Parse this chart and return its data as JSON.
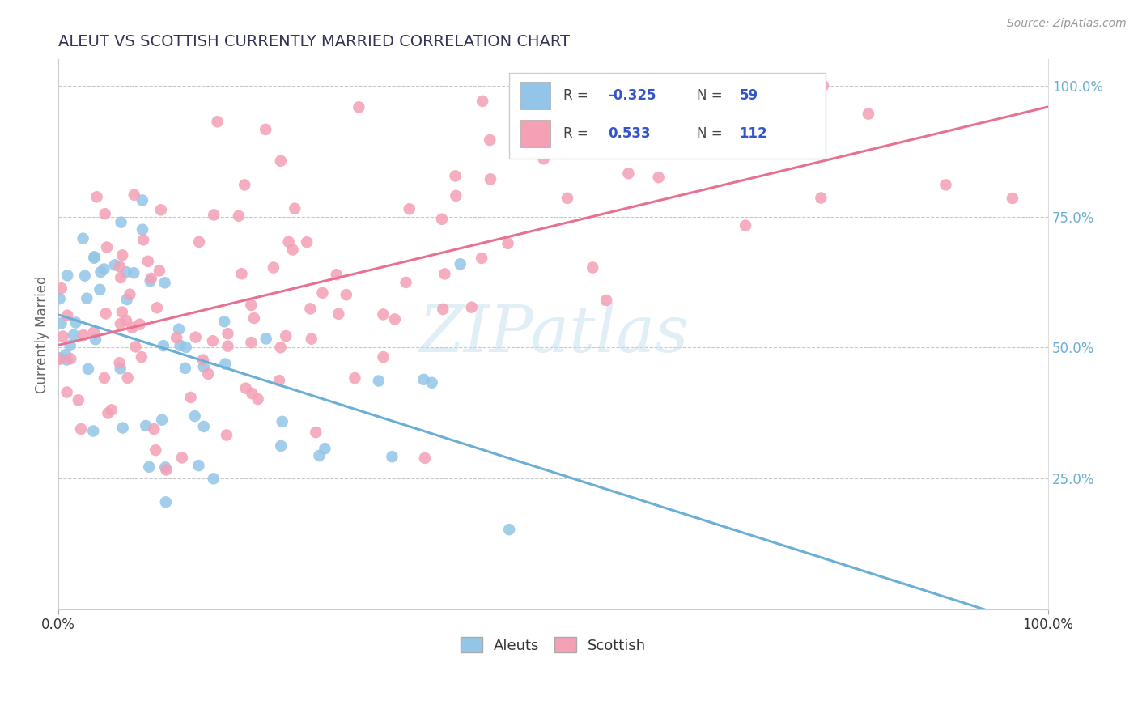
{
  "title": "ALEUT VS SCOTTISH CURRENTLY MARRIED CORRELATION CHART",
  "source_text": "Source: ZipAtlas.com",
  "ylabel": "Currently Married",
  "ylabel_right_ticks": [
    "25.0%",
    "50.0%",
    "75.0%",
    "100.0%"
  ],
  "ylabel_right_values": [
    0.25,
    0.5,
    0.75,
    1.0
  ],
  "aleuts_color": "#92C5E8",
  "scottish_color": "#F4A0B5",
  "trend_blue": "#6BAED6",
  "trend_pink": "#E87090",
  "title_color": "#333355",
  "source_color": "#999999",
  "watermark_color": "#C8E0F0",
  "grid_color": "#BBBBBB",
  "right_tick_color": "#6BAED6",
  "xlim": [
    0.0,
    1.0
  ],
  "ylim": [
    0.0,
    1.05
  ]
}
